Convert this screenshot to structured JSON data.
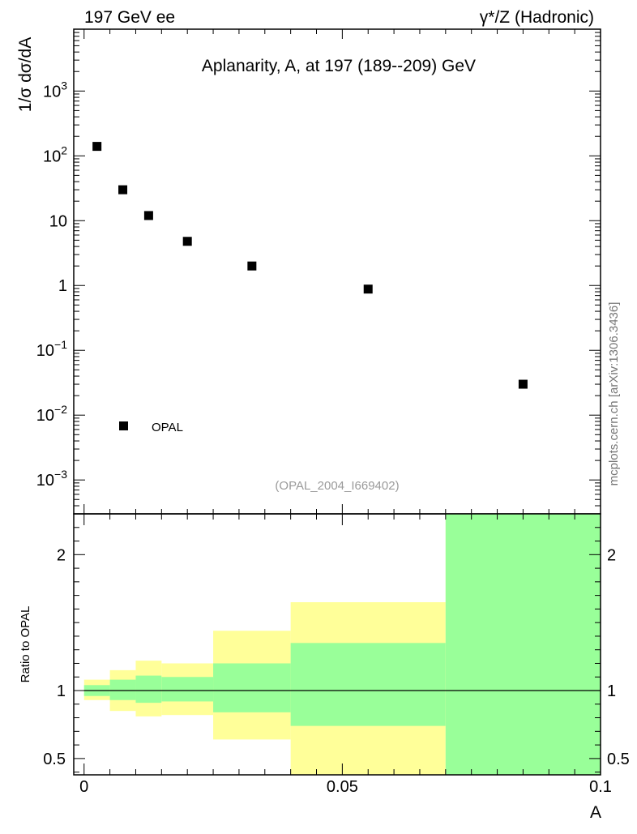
{
  "header": {
    "left_label": "197 GeV ee",
    "right_label": "γ*/Z (Hadronic)"
  },
  "watermark": "mcplots.cern.ch [arXiv:1306.3436]",
  "chart_data": [
    {
      "type": "scatter",
      "title": "Aplanarity, A, at 197 (189--209) GeV",
      "subtitle": "(OPAL_2004_I669402)",
      "ylabel": "1/σ  dσ/dA",
      "xlim": [
        -0.002,
        0.1
      ],
      "ylim": [
        0.0003,
        9000
      ],
      "yscale": "log",
      "legend_position": "bottom-left",
      "y_ticks": [
        {
          "value": 0.001,
          "mantissa": "10",
          "exp": "−3"
        },
        {
          "value": 0.01,
          "mantissa": "10",
          "exp": "−2"
        },
        {
          "value": 0.1,
          "mantissa": "10",
          "exp": "−1"
        },
        {
          "value": 1,
          "mantissa": "1",
          "exp": ""
        },
        {
          "value": 10,
          "mantissa": "10",
          "exp": ""
        },
        {
          "value": 100,
          "mantissa": "10",
          "exp": "2"
        },
        {
          "value": 1000,
          "mantissa": "10",
          "exp": "3"
        }
      ],
      "series": [
        {
          "name": "OPAL",
          "color": "#000000",
          "x": [
            0.0025,
            0.0075,
            0.0125,
            0.02,
            0.0325,
            0.055,
            0.085
          ],
          "y": [
            140,
            30,
            12,
            4.8,
            2.0,
            0.88,
            0.03
          ]
        }
      ]
    },
    {
      "type": "area",
      "ylabel": "Ratio to OPAL",
      "xlabel": "A",
      "xlim": [
        -0.002,
        0.1
      ],
      "ylim": [
        0.38,
        2.3
      ],
      "x_ticks": [
        {
          "value": 0,
          "label": "0"
        },
        {
          "value": 0.05,
          "label": "0.05"
        },
        {
          "value": 0.1,
          "label": "0.1"
        }
      ],
      "y_ticks": [
        {
          "value": 0.5,
          "label": "0.5"
        },
        {
          "value": 1,
          "label": "1"
        },
        {
          "value": 2,
          "label": "2"
        }
      ],
      "reference_line": 1,
      "band_colors": {
        "outer": "#ffff99",
        "inner": "#99ff99"
      },
      "bins": [
        {
          "x0": 0,
          "x1": 0.005,
          "outer": [
            0.93,
            1.08
          ],
          "inner": [
            0.96,
            1.04
          ]
        },
        {
          "x0": 0.005,
          "x1": 0.01,
          "outer": [
            0.85,
            1.15
          ],
          "inner": [
            0.93,
            1.08
          ]
        },
        {
          "x0": 0.01,
          "x1": 0.015,
          "outer": [
            0.81,
            1.22
          ],
          "inner": [
            0.91,
            1.11
          ]
        },
        {
          "x0": 0.015,
          "x1": 0.025,
          "outer": [
            0.82,
            1.2
          ],
          "inner": [
            0.92,
            1.1
          ]
        },
        {
          "x0": 0.025,
          "x1": 0.04,
          "outer": [
            0.64,
            1.44
          ],
          "inner": [
            0.84,
            1.2
          ]
        },
        {
          "x0": 0.04,
          "x1": 0.07,
          "outer": [
            0.38,
            1.65
          ],
          "inner": [
            0.74,
            1.35
          ]
        },
        {
          "x0": 0.07,
          "x1": 0.1,
          "outer": [
            0.38,
            2.3
          ],
          "inner": [
            0.38,
            2.3
          ]
        }
      ]
    }
  ]
}
